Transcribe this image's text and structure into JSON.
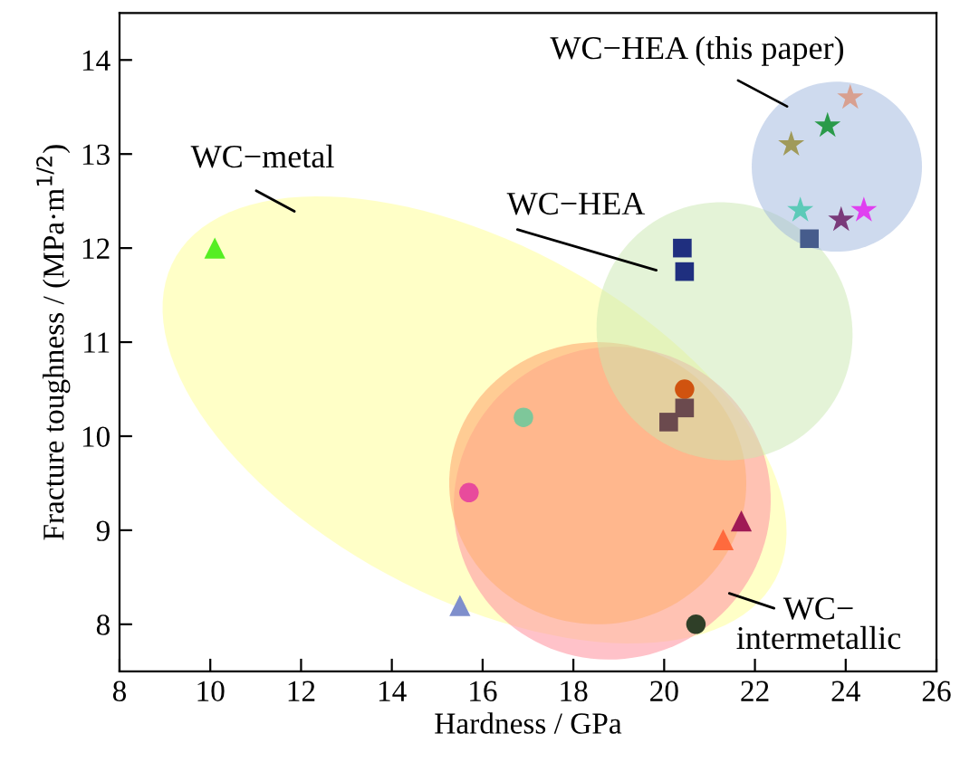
{
  "chart_data": {
    "type": "scatter",
    "xlabel": "Hardness / GPa",
    "ylabel": "Fracture toughness / (MPa·m$^{1/2}$)",
    "xlim": [
      8,
      26
    ],
    "xticks": [
      8,
      10,
      12,
      14,
      16,
      18,
      20,
      22,
      24,
      26
    ],
    "ylim": [
      7.5,
      14.5
    ],
    "yticks": [
      8,
      9,
      10,
      11,
      12,
      13,
      14
    ],
    "grid": false,
    "legend": false,
    "annotations": [
      "WC−metal",
      "WC−HEA",
      "WC−HEA (this paper)",
      "WC−\nintermetallic"
    ],
    "series": [
      {
        "x": [
          10.1
        ],
        "values": [
          12.0
        ],
        "color": "#55ee22",
        "marker": "triangle"
      },
      {
        "x": [
          15.5
        ],
        "values": [
          8.2
        ],
        "color": "#7f8fcc",
        "marker": "triangle"
      },
      {
        "x": [
          21.3
        ],
        "values": [
          8.9
        ],
        "color": "#ff6a3d",
        "marker": "triangle"
      },
      {
        "x": [
          21.7
        ],
        "values": [
          9.1
        ],
        "color": "#a01a55",
        "marker": "triangle"
      },
      {
        "x": [
          15.7
        ],
        "values": [
          9.4
        ],
        "color": "#e84b9c",
        "marker": "circle"
      },
      {
        "x": [
          16.9
        ],
        "values": [
          10.2
        ],
        "color": "#7ec79a",
        "marker": "circle"
      },
      {
        "x": [
          20.45
        ],
        "values": [
          10.5
        ],
        "color": "#d0530f",
        "marker": "circle"
      },
      {
        "x": [
          20.7
        ],
        "values": [
          8.0
        ],
        "color": "#2f3f28",
        "marker": "circle"
      },
      {
        "x": [
          20.1,
          20.45
        ],
        "values": [
          10.15,
          10.3
        ],
        "color": "#6b4a4e",
        "marker": "square"
      },
      {
        "x": [
          20.4,
          20.45
        ],
        "values": [
          12.0,
          11.75
        ],
        "color": "#1f2f7f",
        "marker": "square"
      },
      {
        "x": [
          23.2
        ],
        "values": [
          12.1
        ],
        "color": "#465c8c",
        "marker": "square"
      },
      {
        "x": [
          24.1
        ],
        "values": [
          13.6
        ],
        "color": "#d8a090",
        "marker": "star"
      },
      {
        "x": [
          23.6
        ],
        "values": [
          13.3
        ],
        "color": "#2a9a4a",
        "marker": "star"
      },
      {
        "x": [
          22.8
        ],
        "values": [
          13.1
        ],
        "color": "#a09a5a",
        "marker": "star"
      },
      {
        "x": [
          23.0
        ],
        "values": [
          12.4
        ],
        "color": "#5ccab8",
        "marker": "star"
      },
      {
        "x": [
          23.9
        ],
        "values": [
          12.3
        ],
        "color": "#7a3a7a",
        "marker": "star"
      },
      {
        "x": [
          24.4
        ],
        "values": [
          12.4
        ],
        "color": "#e040f0",
        "marker": "star"
      }
    ]
  }
}
